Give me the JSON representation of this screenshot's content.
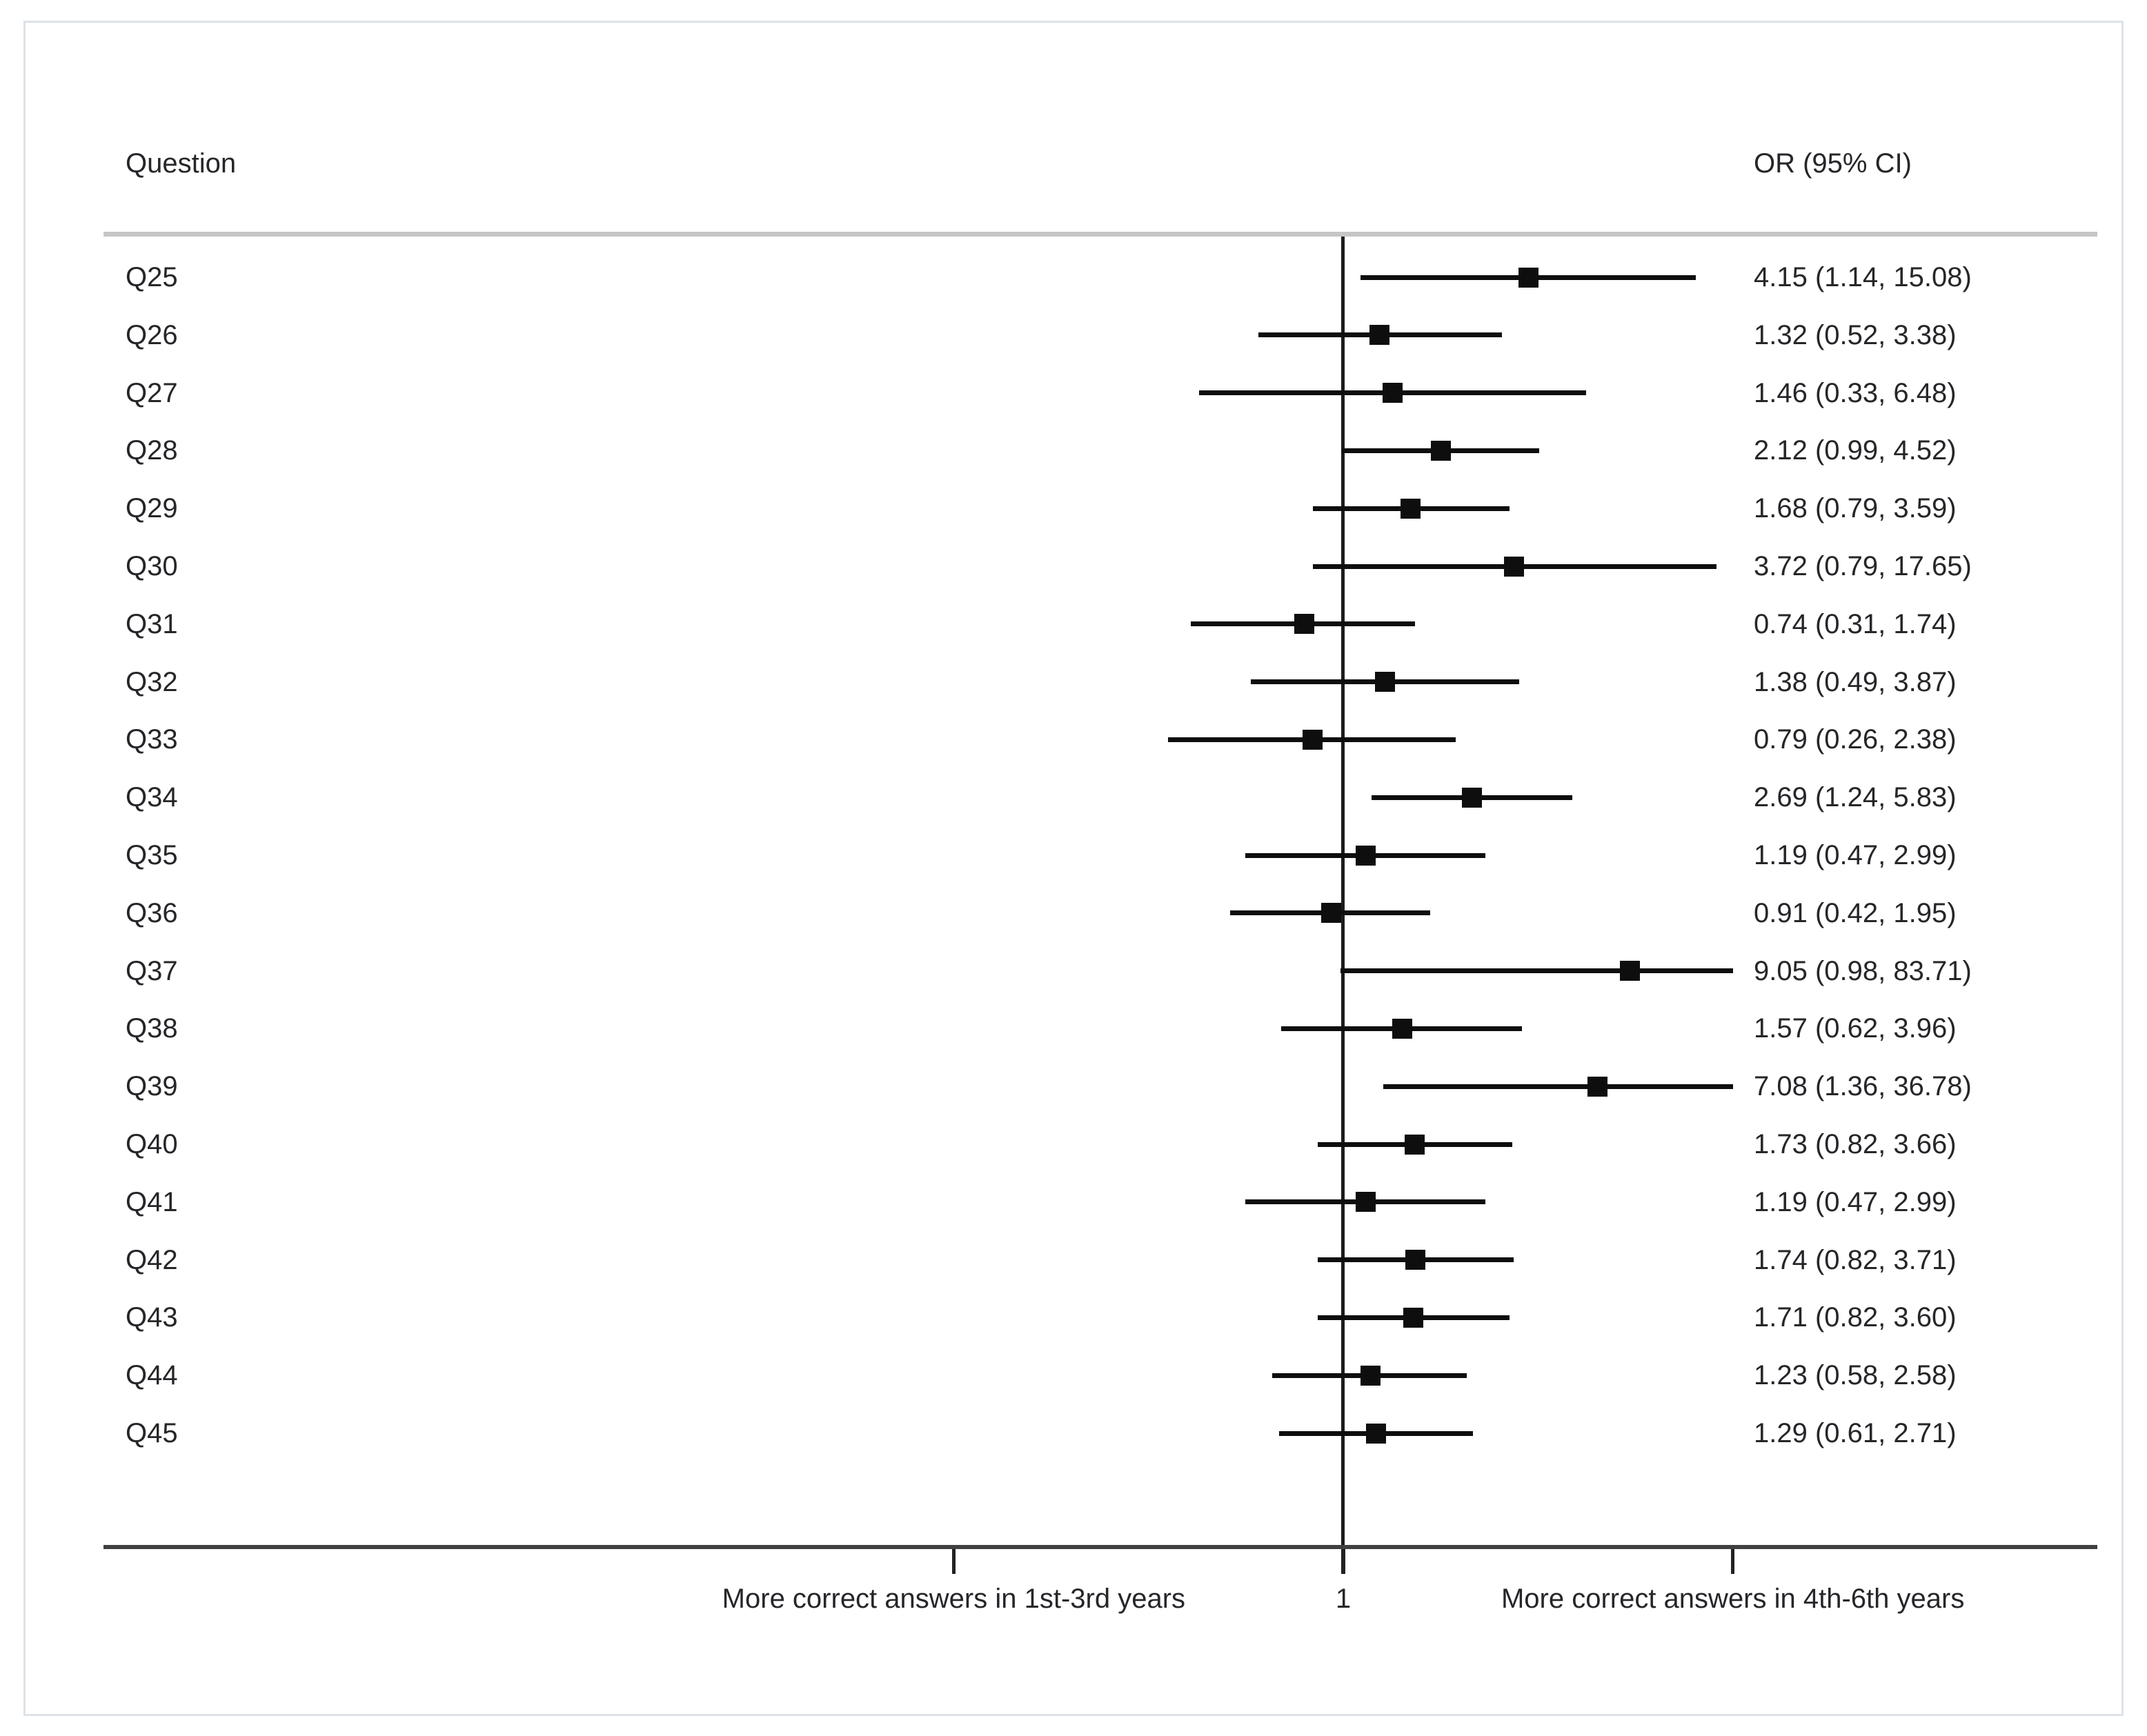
{
  "figure": {
    "question_header": "Question",
    "or_header": "OR (95% CI)"
  },
  "chart_data": {
    "type": "scatter",
    "subtype": "forest-plot",
    "title": "",
    "xlabel": "",
    "ylabel": "Question",
    "legend": "none",
    "grid": "off",
    "x_axis": {
      "scale": "log10",
      "xlim": [
        0.05,
        20
      ],
      "ticks": [
        0.05,
        1,
        20
      ],
      "reference_value": 1,
      "reference_tick_label": "1",
      "ci_clip_upper": 20,
      "left_direction_label": "More correct answers in 1st-3rd years",
      "right_direction_label": "More correct answers in 4th-6th years"
    },
    "rows": [
      {
        "question": "Q25",
        "or": 4.15,
        "ci_low": 1.14,
        "ci_high": 15.08,
        "label": "4.15 (1.14, 15.08)"
      },
      {
        "question": "Q26",
        "or": 1.32,
        "ci_low": 0.52,
        "ci_high": 3.38,
        "label": "1.32 (0.52, 3.38)"
      },
      {
        "question": "Q27",
        "or": 1.46,
        "ci_low": 0.33,
        "ci_high": 6.48,
        "label": "1.46 (0.33, 6.48)"
      },
      {
        "question": "Q28",
        "or": 2.12,
        "ci_low": 0.99,
        "ci_high": 4.52,
        "label": "2.12 (0.99, 4.52)"
      },
      {
        "question": "Q29",
        "or": 1.68,
        "ci_low": 0.79,
        "ci_high": 3.59,
        "label": "1.68 (0.79, 3.59)"
      },
      {
        "question": "Q30",
        "or": 3.72,
        "ci_low": 0.79,
        "ci_high": 17.65,
        "label": "3.72 (0.79, 17.65)"
      },
      {
        "question": "Q31",
        "or": 0.74,
        "ci_low": 0.31,
        "ci_high": 1.74,
        "label": "0.74 (0.31, 1.74)"
      },
      {
        "question": "Q32",
        "or": 1.38,
        "ci_low": 0.49,
        "ci_high": 3.87,
        "label": "1.38 (0.49, 3.87)"
      },
      {
        "question": "Q33",
        "or": 0.79,
        "ci_low": 0.26,
        "ci_high": 2.38,
        "label": "0.79 (0.26, 2.38)"
      },
      {
        "question": "Q34",
        "or": 2.69,
        "ci_low": 1.24,
        "ci_high": 5.83,
        "label": "2.69 (1.24, 5.83)"
      },
      {
        "question": "Q35",
        "or": 1.19,
        "ci_low": 0.47,
        "ci_high": 2.99,
        "label": "1.19 (0.47, 2.99)"
      },
      {
        "question": "Q36",
        "or": 0.91,
        "ci_low": 0.42,
        "ci_high": 1.95,
        "label": "0.91 (0.42, 1.95)"
      },
      {
        "question": "Q37",
        "or": 9.05,
        "ci_low": 0.98,
        "ci_high": 83.71,
        "label": "9.05 (0.98, 83.71)"
      },
      {
        "question": "Q38",
        "or": 1.57,
        "ci_low": 0.62,
        "ci_high": 3.96,
        "label": "1.57 (0.62, 3.96)"
      },
      {
        "question": "Q39",
        "or": 7.08,
        "ci_low": 1.36,
        "ci_high": 36.78,
        "label": "7.08 (1.36, 36.78)"
      },
      {
        "question": "Q40",
        "or": 1.73,
        "ci_low": 0.82,
        "ci_high": 3.66,
        "label": "1.73 (0.82, 3.66)"
      },
      {
        "question": "Q41",
        "or": 1.19,
        "ci_low": 0.47,
        "ci_high": 2.99,
        "label": "1.19 (0.47, 2.99)"
      },
      {
        "question": "Q42",
        "or": 1.74,
        "ci_low": 0.82,
        "ci_high": 3.71,
        "label": "1.74 (0.82, 3.71)"
      },
      {
        "question": "Q43",
        "or": 1.71,
        "ci_low": 0.82,
        "ci_high": 3.6,
        "label": "1.71 (0.82, 3.60)"
      },
      {
        "question": "Q44",
        "or": 1.23,
        "ci_low": 0.58,
        "ci_high": 2.58,
        "label": "1.23 (0.58, 2.58)"
      },
      {
        "question": "Q45",
        "or": 1.29,
        "ci_low": 0.61,
        "ci_high": 2.71,
        "label": "1.29 (0.61, 2.71)"
      }
    ]
  },
  "colors": {
    "text": "#26262a",
    "marker": "#0e0e0e",
    "ci_line": "#0e0e0e",
    "reference_line": "#1c1c1c",
    "axis_line": "#404040",
    "header_rule": "#c6c6c6",
    "frame_border": "#dde2e9",
    "background": "#ffffff"
  }
}
